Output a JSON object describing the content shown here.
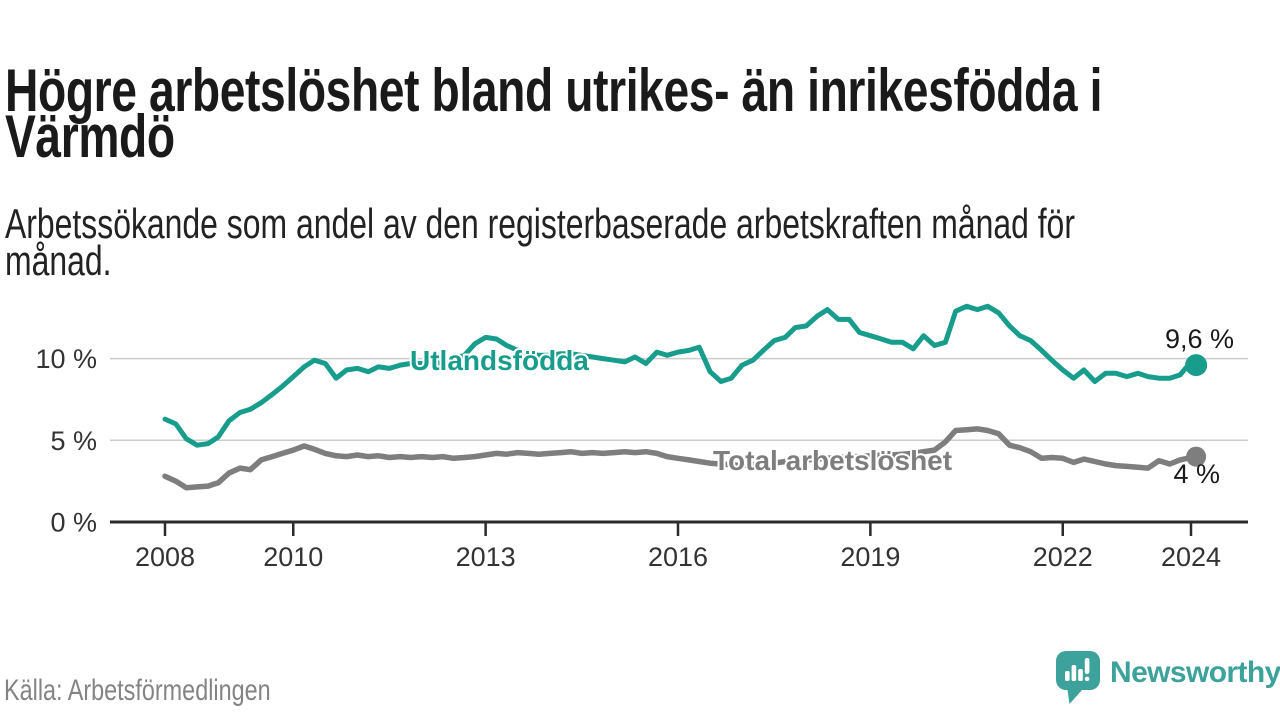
{
  "page": {
    "title": "Högre arbetslöshet bland utrikes- än inrikesfödda i\nVärmdö",
    "subtitle": "Arbetssökande som andel av den registerbaserade arbetskraften månad för\nmånad.",
    "source": "Källa: Arbetsförmedlingen",
    "brand": "Newsworthy"
  },
  "colors": {
    "teal_series": "#189d8d",
    "gray_series": "#7e7e7e",
    "brand_teal": "#3ca29b",
    "axis": "#2b2b2b",
    "axis_text": "#333333",
    "grid": "#cccccc",
    "value_label": "#1a1a1a"
  },
  "chart_data": {
    "type": "line",
    "title": "Högre arbetslöshet bland utrikes- än inrikesfödda i Värmdö",
    "subtitle": "Arbetssökande som andel av den registerbaserade arbetskraften månad för månad.",
    "grid": "horizontal",
    "legend_position": "inline-labels",
    "x_axis": {
      "ticks": [
        2008,
        2010,
        2013,
        2016,
        2019,
        2022,
        2024
      ],
      "labels": [
        "2008",
        "2010",
        "2013",
        "2016",
        "2019",
        "2022",
        "2024"
      ],
      "range": [
        2007.1,
        2024.9
      ]
    },
    "y_axis": {
      "ticks": [
        0,
        5,
        10
      ],
      "labels": [
        "0 %",
        "5 %",
        "10 %"
      ],
      "range": [
        0,
        14.9
      ]
    },
    "x": [
      2008,
      2008.17,
      2008.33,
      2008.5,
      2008.67,
      2008.83,
      2009,
      2009.17,
      2009.33,
      2009.5,
      2009.67,
      2009.83,
      2010,
      2010.17,
      2010.33,
      2010.5,
      2010.67,
      2010.83,
      2011,
      2011.17,
      2011.33,
      2011.5,
      2011.67,
      2011.83,
      2012,
      2012.17,
      2012.33,
      2012.5,
      2012.67,
      2012.83,
      2013,
      2013.17,
      2013.33,
      2013.5,
      2013.67,
      2013.83,
      2014,
      2014.17,
      2014.33,
      2014.5,
      2014.67,
      2014.83,
      2015,
      2015.17,
      2015.33,
      2015.5,
      2015.67,
      2015.83,
      2016,
      2016.17,
      2016.33,
      2016.5,
      2016.67,
      2016.83,
      2017,
      2017.17,
      2017.33,
      2017.5,
      2017.67,
      2017.83,
      2018,
      2018.17,
      2018.33,
      2018.5,
      2018.67,
      2018.83,
      2019,
      2019.17,
      2019.33,
      2019.5,
      2019.67,
      2019.83,
      2020,
      2020.17,
      2020.33,
      2020.5,
      2020.67,
      2020.83,
      2021,
      2021.17,
      2021.33,
      2021.5,
      2021.67,
      2021.83,
      2022,
      2022.17,
      2022.33,
      2022.5,
      2022.67,
      2022.83,
      2023,
      2023.17,
      2023.33,
      2023.5,
      2023.67,
      2023.83,
      2024,
      2024.08
    ],
    "series": [
      {
        "name": "Utlandsfödda",
        "color": "#189d8d",
        "stroke_width": 5,
        "dot_radius": 11,
        "inline_label": {
          "text": "Utlandsfödda",
          "x": 410,
          "y": 92
        },
        "end_label": {
          "text": "9,6 %",
          "x": 1234,
          "y": 70
        },
        "end_value": "9,6 %",
        "values": [
          6.3,
          6.0,
          5.1,
          4.7,
          4.8,
          5.2,
          6.2,
          6.7,
          6.9,
          7.3,
          7.8,
          8.3,
          8.9,
          9.5,
          9.9,
          9.7,
          8.8,
          9.3,
          9.4,
          9.2,
          9.5,
          9.4,
          9.6,
          9.7,
          9.7,
          9.8,
          9.7,
          10.0,
          10.2,
          10.9,
          11.3,
          11.2,
          10.8,
          10.5,
          10.3,
          10.2,
          10.2,
          10.3,
          10.3,
          10.2,
          10.1,
          10.0,
          9.9,
          9.8,
          10.1,
          9.7,
          10.4,
          10.2,
          10.4,
          10.5,
          10.7,
          9.2,
          8.6,
          8.8,
          9.6,
          9.9,
          10.5,
          11.1,
          11.3,
          11.9,
          12.0,
          12.6,
          13.0,
          12.4,
          12.4,
          11.6,
          11.4,
          11.2,
          11.0,
          11.0,
          10.6,
          11.4,
          10.8,
          11.0,
          12.9,
          13.2,
          13.0,
          13.2,
          12.8,
          12.0,
          11.4,
          11.1,
          10.5,
          9.9,
          9.3,
          8.8,
          9.3,
          8.6,
          9.1,
          9.1,
          8.9,
          9.1,
          8.9,
          8.8,
          8.8,
          9.0,
          9.8,
          9.6
        ]
      },
      {
        "name": "Total arbetslöshet",
        "color": "#7e7e7e",
        "stroke_width": 5.5,
        "dot_radius": 10,
        "inline_label": {
          "text": "Total arbetslöshet",
          "x": 713,
          "y": 192
        },
        "end_label": {
          "text": "4 %",
          "x": 1220,
          "y": 205
        },
        "end_value": "4 %",
        "values": [
          2.8,
          2.5,
          2.1,
          2.15,
          2.2,
          2.4,
          3.0,
          3.3,
          3.2,
          3.8,
          4.0,
          4.2,
          4.4,
          4.65,
          4.45,
          4.2,
          4.05,
          4.0,
          4.1,
          4.0,
          4.05,
          3.95,
          4.0,
          3.95,
          4.0,
          3.95,
          4.0,
          3.9,
          3.95,
          4.0,
          4.1,
          4.2,
          4.15,
          4.25,
          4.2,
          4.15,
          4.2,
          4.25,
          4.3,
          4.2,
          4.25,
          4.2,
          4.25,
          4.3,
          4.25,
          4.3,
          4.2,
          4.0,
          3.9,
          3.8,
          3.7,
          3.6,
          3.55,
          3.5,
          3.45,
          3.5,
          3.55,
          3.6,
          3.7,
          3.75,
          3.8,
          3.85,
          3.9,
          3.95,
          4.0,
          4.0,
          4.05,
          4.1,
          4.1,
          4.15,
          4.2,
          4.3,
          4.4,
          4.9,
          5.6,
          5.65,
          5.7,
          5.6,
          5.4,
          4.7,
          4.55,
          4.3,
          3.9,
          3.95,
          3.9,
          3.65,
          3.85,
          3.7,
          3.55,
          3.45,
          3.4,
          3.35,
          3.3,
          3.75,
          3.55,
          3.8,
          3.95,
          4.0
        ]
      }
    ]
  }
}
